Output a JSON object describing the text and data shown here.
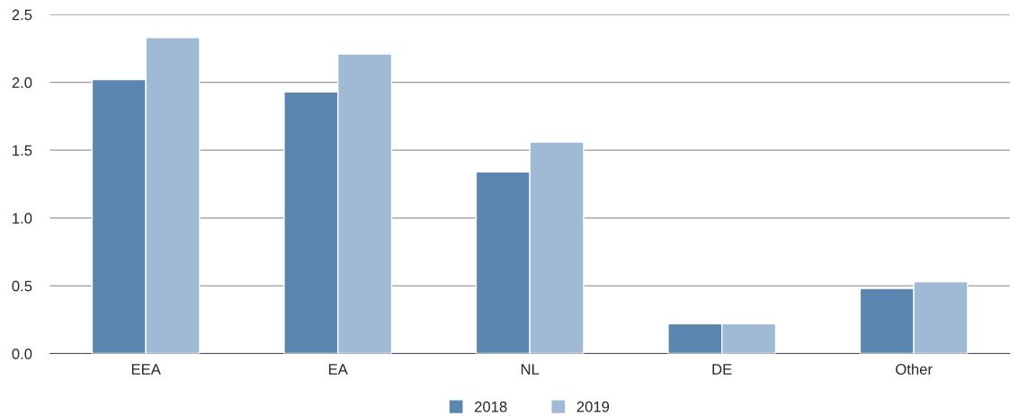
{
  "chart_data": {
    "type": "bar",
    "categories": [
      "EEA",
      "EA",
      "NL",
      "DE",
      "Other"
    ],
    "series": [
      {
        "name": "2018",
        "color": "#5b86b0",
        "values": [
          2.02,
          1.93,
          1.34,
          0.22,
          0.48
        ]
      },
      {
        "name": "2019",
        "color": "#a0b9d4",
        "values": [
          2.33,
          2.21,
          1.56,
          0.22,
          0.53
        ]
      }
    ],
    "ylim": [
      0,
      2.5
    ],
    "yticks": [
      {
        "value": 0,
        "label": "0.0"
      },
      {
        "value": 0.5,
        "label": "0.5"
      },
      {
        "value": 1,
        "label": "1.0"
      },
      {
        "value": 1.5,
        "label": "1.5"
      },
      {
        "value": 2,
        "label": "2.0"
      },
      {
        "value": 2.5,
        "label": "2.5"
      }
    ],
    "grid": "y",
    "legend": "bottom"
  }
}
